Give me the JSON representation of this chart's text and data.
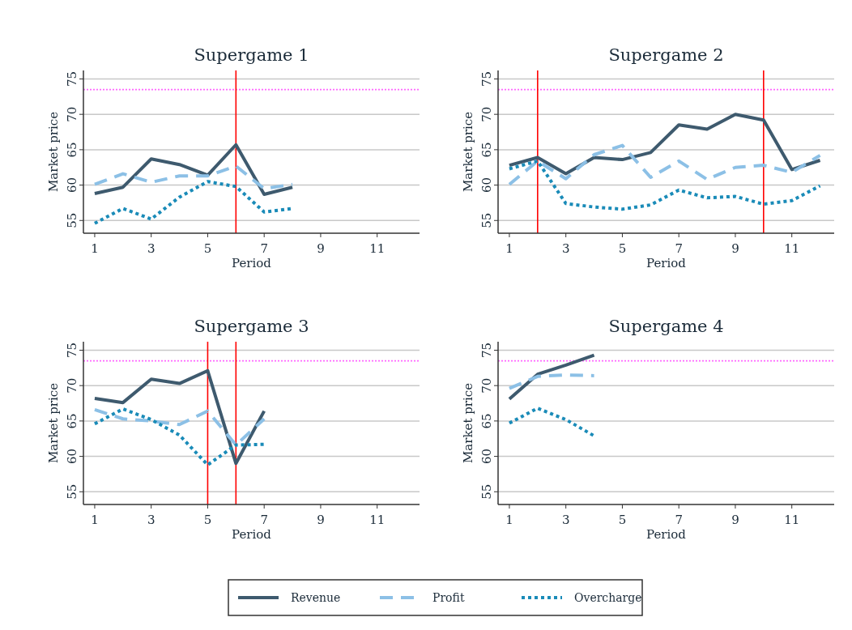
{
  "chart_data": [
    {
      "type": "line",
      "title": "Supergame 1",
      "xlabel": "Period",
      "ylabel": "Market price",
      "xlim": [
        0.6,
        12.5
      ],
      "xticks": [
        1,
        3,
        5,
        7,
        9,
        11
      ],
      "ylim": [
        53.2,
        76.2
      ],
      "yticks": [
        55,
        60,
        65,
        70,
        75
      ],
      "grid": "y",
      "legend": "bottom",
      "series": [
        {
          "name": "Revenue",
          "color": "#3e5a6e",
          "line_style": "solid",
          "x": [
            1,
            2,
            3,
            4,
            5,
            6,
            7,
            8
          ],
          "values": [
            58.8,
            59.7,
            63.7,
            62.9,
            61.4,
            65.7,
            58.7,
            59.7
          ]
        },
        {
          "name": "Profit",
          "color": "#8cc0e6",
          "line_style": "dashed",
          "x": [
            1,
            2,
            3,
            4,
            5,
            6,
            7,
            8
          ],
          "values": [
            60.1,
            61.6,
            60.4,
            61.3,
            61.3,
            62.7,
            59.5,
            60.1
          ]
        },
        {
          "name": "Overcharge",
          "color": "#1a8bb8",
          "line_style": "dotted",
          "x": [
            1,
            2,
            3,
            4,
            5,
            6,
            7,
            8
          ],
          "values": [
            54.6,
            56.7,
            55.2,
            58.3,
            60.5,
            59.8,
            56.2,
            56.7
          ]
        }
      ],
      "ref_lines": [
        {
          "axis": "y",
          "value": 73.5,
          "color": "#ff66ff",
          "line_style": "dotted"
        },
        {
          "axis": "x",
          "value": 6,
          "color": "#ff0000",
          "line_style": "solid"
        }
      ]
    },
    {
      "type": "line",
      "title": "Supergame 2",
      "xlabel": "Period",
      "ylabel": "Market price",
      "xlim": [
        0.6,
        12.5
      ],
      "xticks": [
        1,
        3,
        5,
        7,
        9,
        11
      ],
      "ylim": [
        53.2,
        76.2
      ],
      "yticks": [
        55,
        60,
        65,
        70,
        75
      ],
      "grid": "y",
      "series": [
        {
          "color": "#3e5a6e",
          "line_style": "solid",
          "x": [
            1,
            2,
            3,
            4,
            5,
            6,
            7,
            8,
            9,
            10,
            11,
            12
          ],
          "values": [
            62.8,
            63.9,
            61.6,
            63.9,
            63.6,
            64.6,
            68.5,
            67.9,
            70.0,
            69.2,
            62.2,
            63.5
          ]
        },
        {
          "color": "#8cc0e6",
          "line_style": "dashed",
          "x": [
            1,
            2,
            3,
            4,
            5,
            6,
            7,
            8,
            9,
            10,
            11,
            12
          ],
          "values": [
            60.1,
            63.4,
            60.9,
            64.3,
            65.6,
            61.1,
            63.4,
            60.8,
            62.5,
            62.8,
            61.8,
            64.2
          ]
        },
        {
          "color": "#1a8bb8",
          "line_style": "dotted",
          "x": [
            1,
            2,
            3,
            4,
            5,
            6,
            7,
            8,
            9,
            10,
            11,
            12
          ],
          "values": [
            62.3,
            63.4,
            57.4,
            56.9,
            56.6,
            57.2,
            59.3,
            58.2,
            58.4,
            57.3,
            57.8,
            59.9
          ]
        }
      ],
      "ref_lines": [
        {
          "axis": "y",
          "value": 73.5,
          "color": "#ff66ff",
          "line_style": "dotted"
        },
        {
          "axis": "x",
          "value": 2,
          "color": "#ff0000",
          "line_style": "solid"
        },
        {
          "axis": "x",
          "value": 10,
          "color": "#ff0000",
          "line_style": "solid"
        }
      ]
    },
    {
      "type": "line",
      "title": "Supergame 3",
      "xlabel": "Period",
      "ylabel": "Market price",
      "xlim": [
        0.6,
        12.5
      ],
      "xticks": [
        1,
        3,
        5,
        7,
        9,
        11
      ],
      "ylim": [
        53.2,
        76.2
      ],
      "yticks": [
        55,
        60,
        65,
        70,
        75
      ],
      "grid": "y",
      "series": [
        {
          "color": "#3e5a6e",
          "line_style": "solid",
          "x": [
            1,
            2,
            3,
            4,
            5,
            6,
            7
          ],
          "values": [
            68.2,
            67.6,
            70.9,
            70.3,
            72.1,
            59.0,
            66.4
          ]
        },
        {
          "color": "#8cc0e6",
          "line_style": "dashed",
          "x": [
            1,
            2,
            3,
            4,
            5,
            6,
            7
          ],
          "values": [
            66.6,
            65.3,
            65.0,
            64.5,
            66.4,
            61.6,
            65.3
          ]
        },
        {
          "color": "#1a8bb8",
          "line_style": "dotted",
          "x": [
            1,
            2,
            3,
            4,
            5,
            6,
            7
          ],
          "values": [
            64.6,
            66.7,
            65.2,
            63.0,
            58.8,
            61.6,
            61.7
          ]
        }
      ],
      "ref_lines": [
        {
          "axis": "y",
          "value": 73.5,
          "color": "#ff66ff",
          "line_style": "dotted"
        },
        {
          "axis": "x",
          "value": 5,
          "color": "#ff0000",
          "line_style": "solid"
        },
        {
          "axis": "x",
          "value": 6,
          "color": "#ff0000",
          "line_style": "solid"
        }
      ]
    },
    {
      "type": "line",
      "title": "Supergame 4",
      "xlabel": "Period",
      "ylabel": "Market price",
      "xlim": [
        0.6,
        12.5
      ],
      "xticks": [
        1,
        3,
        5,
        7,
        9,
        11
      ],
      "ylim": [
        53.2,
        76.2
      ],
      "yticks": [
        55,
        60,
        65,
        70,
        75
      ],
      "grid": "y",
      "series": [
        {
          "color": "#3e5a6e",
          "line_style": "solid",
          "x": [
            1,
            2,
            3,
            4
          ],
          "values": [
            68.1,
            71.6,
            72.9,
            74.3
          ]
        },
        {
          "color": "#8cc0e6",
          "line_style": "dashed",
          "x": [
            1,
            2,
            3,
            4
          ],
          "values": [
            69.6,
            71.3,
            71.5,
            71.4
          ]
        },
        {
          "color": "#1a8bb8",
          "line_style": "dotted",
          "x": [
            1,
            2,
            3,
            4
          ],
          "values": [
            64.7,
            66.8,
            65.2,
            62.9
          ]
        }
      ],
      "ref_lines": [
        {
          "axis": "y",
          "value": 73.5,
          "color": "#ff66ff",
          "line_style": "dotted"
        }
      ]
    }
  ]
}
